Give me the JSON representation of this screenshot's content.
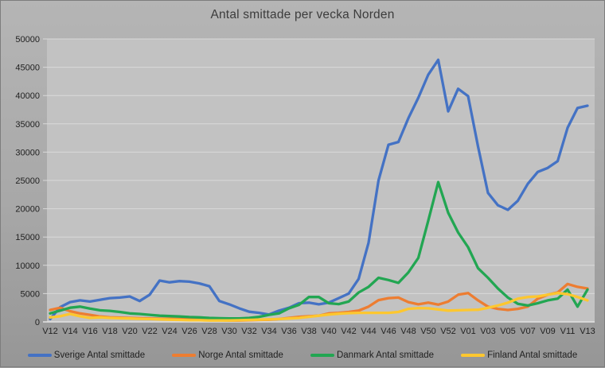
{
  "title": "Antal smittade per vecka Norden",
  "colors": {
    "frame_background": "#a8a8a8",
    "plot_background": "#c2c2c2",
    "gridline": "#d9d9d9",
    "axis_line": "#e3e3e3",
    "title_text": "#3c3c3c",
    "tick_text": "#222222",
    "sverige": "#4472c4",
    "norge": "#ed7d31",
    "danmark": "#22a652",
    "finland": "#fdc72f"
  },
  "chart_data": {
    "type": "line",
    "title": "Antal smittade per vecka Norden",
    "xlabel": "",
    "ylabel": "",
    "ylim": [
      0,
      50000
    ],
    "y_ticks": [
      0,
      5000,
      10000,
      15000,
      20000,
      25000,
      30000,
      35000,
      40000,
      45000,
      50000
    ],
    "grid": "horizontal",
    "legend_position": "bottom",
    "x_tick_every": 2,
    "categories": [
      "V12",
      "V13",
      "V14",
      "V15",
      "V16",
      "V17",
      "V18",
      "V19",
      "V20",
      "V21",
      "V22",
      "V23",
      "V24",
      "V25",
      "V26",
      "V27",
      "V28",
      "V29",
      "V30",
      "V31",
      "V32",
      "V33",
      "V34",
      "V35",
      "V36",
      "V37",
      "V38",
      "V39",
      "V40",
      "V41",
      "V42",
      "V43",
      "V44",
      "V45",
      "V46",
      "V47",
      "V48",
      "V49",
      "V50",
      "V51",
      "V52",
      "V53",
      "V01",
      "V02",
      "V03",
      "V04",
      "V05",
      "V06",
      "V07",
      "V08",
      "V09",
      "V10",
      "V11",
      "V12",
      "V13"
    ],
    "x_tick_labels": [
      "V12",
      "V14",
      "V16",
      "V18",
      "V20",
      "V22",
      "V24",
      "V26",
      "V28",
      "V30",
      "V32",
      "V34",
      "V36",
      "V38",
      "V40",
      "V42",
      "V44",
      "V46",
      "V48",
      "V50",
      "V52",
      "V01",
      "V03",
      "V05",
      "V07",
      "V09",
      "V11",
      "V13"
    ],
    "series": [
      {
        "name": "Sverige Antal smittade",
        "color": "#4472c4",
        "values": [
          500,
          2600,
          3500,
          3800,
          3600,
          3900,
          4200,
          4300,
          4500,
          3700,
          4800,
          7300,
          7000,
          7200,
          7100,
          6800,
          6300,
          3700,
          3100,
          2400,
          1800,
          1600,
          1300,
          2000,
          2500,
          3300,
          3400,
          3100,
          3400,
          4200,
          5000,
          7600,
          14000,
          25000,
          31300,
          31800,
          36000,
          39600,
          43700,
          46300,
          37200,
          41200,
          39900,
          31000,
          22800,
          20600,
          19800,
          21400,
          24400,
          26500,
          27200,
          28400,
          34300,
          37800,
          38200
        ]
      },
      {
        "name": "Norge Antal smittade",
        "color": "#ed7d31",
        "values": [
          2100,
          2500,
          1900,
          1500,
          1250,
          950,
          800,
          750,
          700,
          650,
          600,
          560,
          550,
          500,
          450,
          400,
          350,
          300,
          250,
          250,
          300,
          350,
          400,
          500,
          700,
          900,
          1000,
          1100,
          1500,
          1600,
          1750,
          2000,
          2700,
          3850,
          4200,
          4300,
          3500,
          3100,
          3400,
          3050,
          3600,
          4800,
          5100,
          3800,
          2700,
          2300,
          2100,
          2300,
          2700,
          4100,
          4800,
          5200,
          6700,
          6200,
          5900
        ]
      },
      {
        "name": "Danmark Antal smittade",
        "color": "#22a652",
        "values": [
          1500,
          2000,
          2500,
          2700,
          2350,
          2050,
          1950,
          1750,
          1500,
          1400,
          1250,
          1100,
          1030,
          950,
          850,
          800,
          700,
          650,
          600,
          600,
          700,
          900,
          1250,
          1500,
          2400,
          3000,
          4400,
          4400,
          3300,
          3150,
          3600,
          5200,
          6200,
          7800,
          7400,
          6900,
          8750,
          11300,
          17900,
          24700,
          19300,
          15800,
          13200,
          9500,
          7800,
          5900,
          4300,
          3200,
          2900,
          3300,
          3800,
          4100,
          5700,
          2700,
          5700
        ]
      },
      {
        "name": "Finland Antal smittade",
        "color": "#fdc72f",
        "values": [
          800,
          1000,
          1400,
          1000,
          700,
          800,
          700,
          650,
          600,
          550,
          500,
          450,
          400,
          350,
          300,
          300,
          250,
          250,
          250,
          300,
          350,
          400,
          450,
          500,
          600,
          700,
          900,
          1100,
          1300,
          1450,
          1550,
          1600,
          1600,
          1600,
          1600,
          1750,
          2300,
          2450,
          2400,
          2200,
          2000,
          2050,
          2100,
          2150,
          2500,
          2900,
          3400,
          4100,
          4400,
          4500,
          4800,
          5100,
          4900,
          4400,
          3800
        ]
      }
    ]
  }
}
